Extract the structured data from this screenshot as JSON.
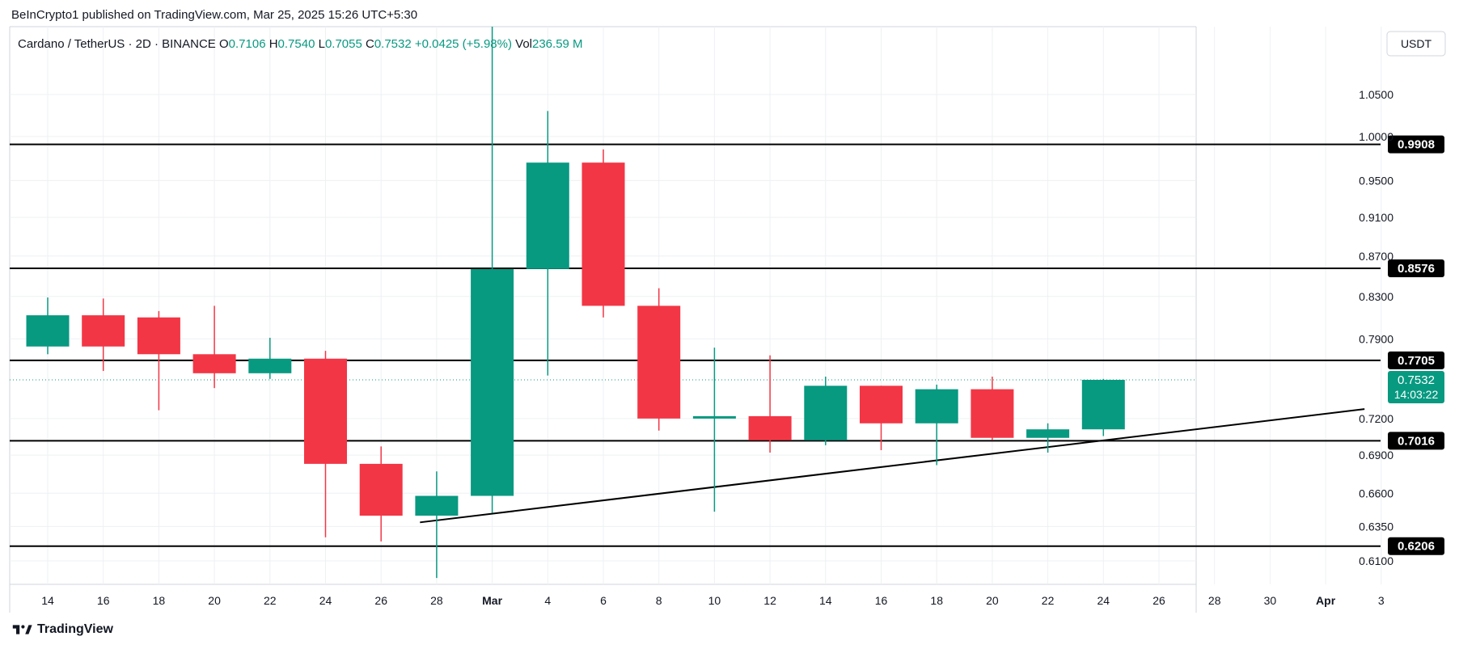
{
  "header": {
    "publisher_line": "BeInCrypto1 published on TradingView.com, Mar 25, 2025 15:26 UTC+5:30"
  },
  "footer": {
    "brand": "TradingView",
    "logo_icon": "tradingview-logo-icon"
  },
  "colors": {
    "up": "#089981",
    "down": "#f23645",
    "level_line": "#000000",
    "grid": "#eef0f3",
    "axis_text": "#131722"
  },
  "chart_data": {
    "type": "candlestick",
    "symbol_line": {
      "name": "Cardano / TetherUS · 2D · BINANCE",
      "o_label": "O",
      "o_value": "0.7106",
      "h_label": "H",
      "h_value": "0.7540",
      "l_label": "L",
      "l_value": "0.7055",
      "c_label": "C",
      "c_value": "0.7532",
      "change": "+0.0425 (+5.98%)",
      "vol_label": "Vol",
      "vol_value": "236.59 M"
    },
    "currency_label": "USDT",
    "y_ticks": [
      "1.0500",
      "1.0000",
      "0.9500",
      "0.9100",
      "0.8700",
      "0.8300",
      "0.7900",
      "0.7200",
      "0.6900",
      "0.6600",
      "0.6350",
      "0.6100"
    ],
    "y_log_scale": true,
    "x_ticks": [
      "14",
      "16",
      "18",
      "20",
      "22",
      "24",
      "26",
      "28",
      "Mar",
      "4",
      "6",
      "8",
      "10",
      "12",
      "14",
      "16",
      "18",
      "20",
      "22",
      "24",
      "26",
      "28",
      "30",
      "Apr",
      "3"
    ],
    "candles": [
      {
        "o": 0.783,
        "h": 0.829,
        "l": 0.776,
        "c": 0.812
      },
      {
        "o": 0.812,
        "h": 0.828,
        "l": 0.761,
        "c": 0.783
      },
      {
        "o": 0.81,
        "h": 0.816,
        "l": 0.727,
        "c": 0.776
      },
      {
        "o": 0.776,
        "h": 0.821,
        "l": 0.746,
        "c": 0.759
      },
      {
        "o": 0.759,
        "h": 0.791,
        "l": 0.754,
        "c": 0.772
      },
      {
        "o": 0.772,
        "h": 0.779,
        "l": 0.627,
        "c": 0.683
      },
      {
        "o": 0.683,
        "h": 0.697,
        "l": 0.624,
        "c": 0.643
      },
      {
        "o": 0.643,
        "h": 0.677,
        "l": 0.598,
        "c": 0.658
      },
      {
        "o": 0.658,
        "h": 1.21,
        "l": 0.645,
        "c": 0.857
      },
      {
        "o": 0.857,
        "h": 1.03,
        "l": 0.757,
        "c": 0.97
      },
      {
        "o": 0.97,
        "h": 0.985,
        "l": 0.81,
        "c": 0.821
      },
      {
        "o": 0.821,
        "h": 0.838,
        "l": 0.71,
        "c": 0.72
      },
      {
        "o": 0.72,
        "h": 0.782,
        "l": 0.646,
        "c": 0.722
      },
      {
        "o": 0.722,
        "h": 0.775,
        "l": 0.692,
        "c": 0.702
      },
      {
        "o": 0.702,
        "h": 0.756,
        "l": 0.698,
        "c": 0.748
      },
      {
        "o": 0.748,
        "h": 0.748,
        "l": 0.694,
        "c": 0.716
      },
      {
        "o": 0.716,
        "h": 0.749,
        "l": 0.682,
        "c": 0.745
      },
      {
        "o": 0.745,
        "h": 0.756,
        "l": 0.702,
        "c": 0.704
      },
      {
        "o": 0.704,
        "h": 0.716,
        "l": 0.692,
        "c": 0.711
      },
      {
        "o": 0.711,
        "h": 0.754,
        "l": 0.7055,
        "c": 0.7532
      }
    ],
    "levels": [
      {
        "value": 0.9908,
        "label": "0.9908"
      },
      {
        "value": 0.8576,
        "label": "0.8576"
      },
      {
        "value": 0.7705,
        "label": "0.7705"
      },
      {
        "value": 0.7016,
        "label": "0.7016"
      },
      {
        "value": 0.6206,
        "label": "0.6206"
      }
    ],
    "trendline": {
      "start_index": 6.7,
      "start_value": 0.638,
      "end_index": 23.7,
      "end_value": 0.728
    },
    "last_price": {
      "value": 0.7532,
      "label": "0.7532",
      "countdown": "14:03:22"
    }
  }
}
